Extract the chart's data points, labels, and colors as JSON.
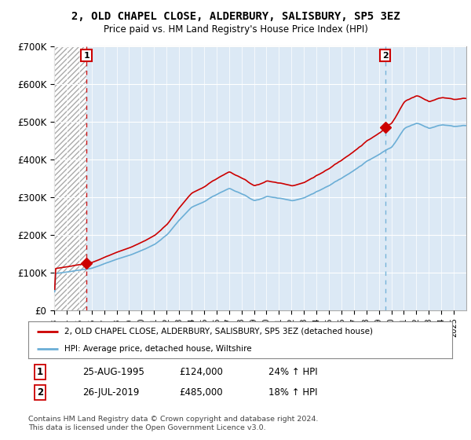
{
  "title": "2, OLD CHAPEL CLOSE, ALDERBURY, SALISBURY, SP5 3EZ",
  "subtitle": "Price paid vs. HM Land Registry's House Price Index (HPI)",
  "legend_line1": "2, OLD CHAPEL CLOSE, ALDERBURY, SALISBURY, SP5 3EZ (detached house)",
  "legend_line2": "HPI: Average price, detached house, Wiltshire",
  "transaction1_date": "25-AUG-1995",
  "transaction1_price": 124000,
  "transaction1_hpi": "24% ↑ HPI",
  "transaction2_date": "26-JUL-2019",
  "transaction2_price": 485000,
  "transaction2_hpi": "18% ↑ HPI",
  "footnote": "Contains HM Land Registry data © Crown copyright and database right 2024.\nThis data is licensed under the Open Government Licence v3.0.",
  "hpi_color": "#6baed6",
  "price_color": "#cc0000",
  "marker_color": "#cc0000",
  "vline1_color": "#cc0000",
  "vline2_color": "#6baed6",
  "plot_bg_color": "#dce9f5",
  "hatch_bg_color": "#ffffff",
  "ylim": [
    0,
    700000
  ],
  "yticks": [
    0,
    100000,
    200000,
    300000,
    400000,
    500000,
    600000,
    700000
  ],
  "ytick_labels": [
    "£0",
    "£100K",
    "£200K",
    "£300K",
    "£400K",
    "£500K",
    "£600K",
    "£700K"
  ],
  "xmin": 1993,
  "xmax": 2026
}
